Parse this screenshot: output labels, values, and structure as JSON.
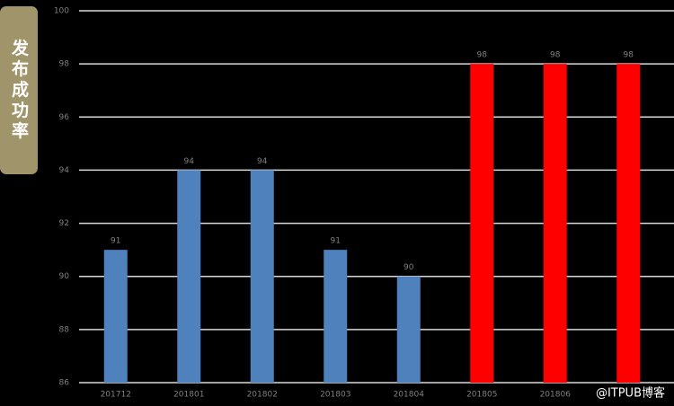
{
  "chart_data": {
    "type": "bar",
    "y_label": "发布成功率",
    "categories": [
      "201712",
      "201801",
      "201802",
      "201803",
      "201804",
      "201805",
      "201806",
      null
    ],
    "values": [
      91,
      94,
      94,
      91,
      90,
      98,
      98,
      98
    ],
    "colors": [
      "#4f81bd",
      "#4f81bd",
      "#4f81bd",
      "#4f81bd",
      "#4f81bd",
      "#ff0000",
      "#ff0000",
      "#ff0000"
    ],
    "ylim": [
      86,
      100
    ],
    "yticks": [
      86,
      88,
      90,
      92,
      94,
      96,
      98,
      100
    ],
    "grid": true,
    "watermark": "@ITPUB博客"
  }
}
